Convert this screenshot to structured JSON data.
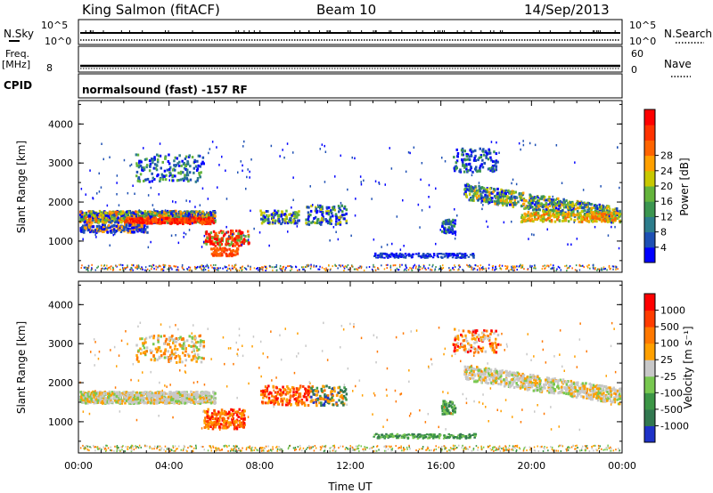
{
  "header": {
    "station": "King Salmon (fitACF)",
    "beam": "Beam 10",
    "date": "14/Sep/2013"
  },
  "panels": {
    "nsky_label": "N.Sky",
    "nsearch_label": "N.Search",
    "freq_label_1": "Freq.",
    "freq_label_2": "[MHz]",
    "nave_label": "Nave",
    "cpid_label": "CPID",
    "mode_text": "normalsound (fast) -157 RF",
    "nsky_ticks": [
      "10^5",
      "10^0"
    ],
    "nsearch_ticks": [
      "10^5",
      "10^0"
    ],
    "freq_ticks": [
      "8"
    ],
    "nave_ticks": [
      "60",
      "0"
    ]
  },
  "chart_data": [
    {
      "type": "heatmap",
      "name": "power",
      "ylabel": "Slant Range [km]",
      "xlabel": "Time UT",
      "x_ticks": [
        "00:00",
        "04:00",
        "08:00",
        "12:00",
        "16:00",
        "20:00",
        "00:00"
      ],
      "y_ticks": [
        "1000",
        "2000",
        "3000",
        "4000"
      ],
      "ylim": [
        200,
        4600
      ],
      "xlim": [
        0,
        24
      ],
      "colorbar": {
        "label": "Power [dB]",
        "ticks": [
          "4",
          "8",
          "12",
          "16",
          "20",
          "24",
          "28"
        ],
        "colors": [
          "#0000ff",
          "#1e50b4",
          "#2d7d8c",
          "#3c9650",
          "#64b43c",
          "#c8c800",
          "#ffa000",
          "#ff6400",
          "#ff3200",
          "#ff0000"
        ]
      }
    },
    {
      "type": "heatmap",
      "name": "velocity",
      "ylabel": "Slant Range [km]",
      "xlabel": "Time UT",
      "x_ticks": [
        "00:00",
        "04:00",
        "08:00",
        "12:00",
        "16:00",
        "20:00",
        "00:00"
      ],
      "y_ticks": [
        "1000",
        "2000",
        "3000",
        "4000"
      ],
      "ylim": [
        200,
        4600
      ],
      "xlim": [
        0,
        24
      ],
      "colorbar": {
        "label": "Velocity [m s⁻¹]",
        "ticks": [
          "1000",
          "500",
          "100",
          "25",
          "-25",
          "-100",
          "-500",
          "-1000"
        ],
        "colors": [
          "#1e32c8",
          "#327850",
          "#3c9646",
          "#78c850",
          "#c8c8c8",
          "#ffa000",
          "#ff7800",
          "#ff3c00",
          "#ff0000"
        ]
      }
    }
  ]
}
